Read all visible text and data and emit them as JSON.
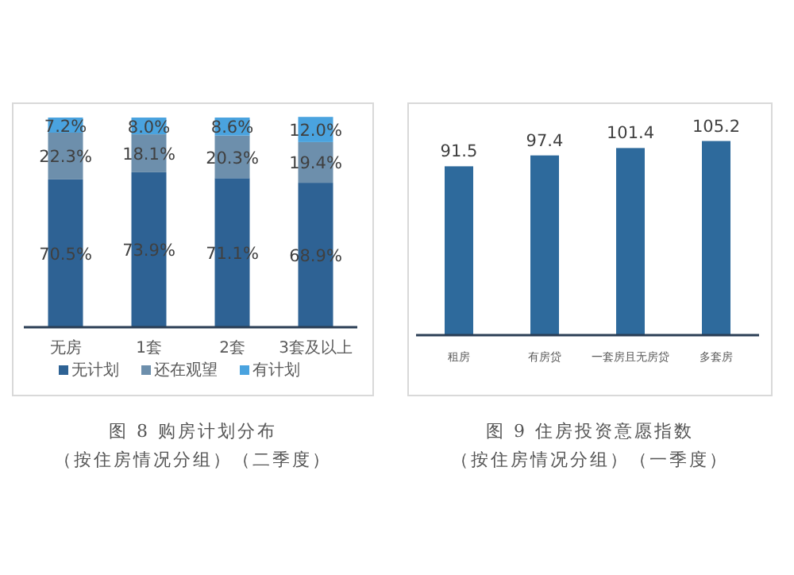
{
  "chart_data": [
    {
      "type": "bar",
      "stacked": true,
      "title": "图 8 购房计划分布",
      "subtitle": "（按住房情况分组）（二季度）",
      "categories": [
        "无房",
        "1套",
        "2套",
        "3套及以上"
      ],
      "ylim": [
        0,
        100
      ],
      "legend": "bottom",
      "series": [
        {
          "name": "无计划",
          "color": "#2e6294",
          "values": [
            70.5,
            73.9,
            71.1,
            68.9
          ],
          "value_labels": [
            "70.5%",
            "73.9%",
            "71.1%",
            "68.9%"
          ]
        },
        {
          "name": "还在观望",
          "color": "#6d8fac",
          "values": [
            22.3,
            18.1,
            20.3,
            19.4
          ],
          "value_labels": [
            "22.3%",
            "18.1%",
            "20.3%",
            "19.4%"
          ]
        },
        {
          "name": "有计划",
          "color": "#4aa3df",
          "values": [
            7.2,
            8.0,
            8.6,
            12.0
          ],
          "value_labels": [
            "7.2%",
            "8.0%",
            "8.6%",
            "12.0%"
          ]
        }
      ]
    },
    {
      "type": "bar",
      "title": "图 9 住房投资意愿指数",
      "subtitle": "（按住房情况分组）（一季度）",
      "categories": [
        "租房",
        "有房贷",
        "一套房且无房贷",
        "多套房"
      ],
      "data_labels": true,
      "series": [
        {
          "color": "#2e6a9c",
          "values": [
            91.5,
            97.4,
            101.4,
            105.2
          ]
        }
      ]
    }
  ]
}
